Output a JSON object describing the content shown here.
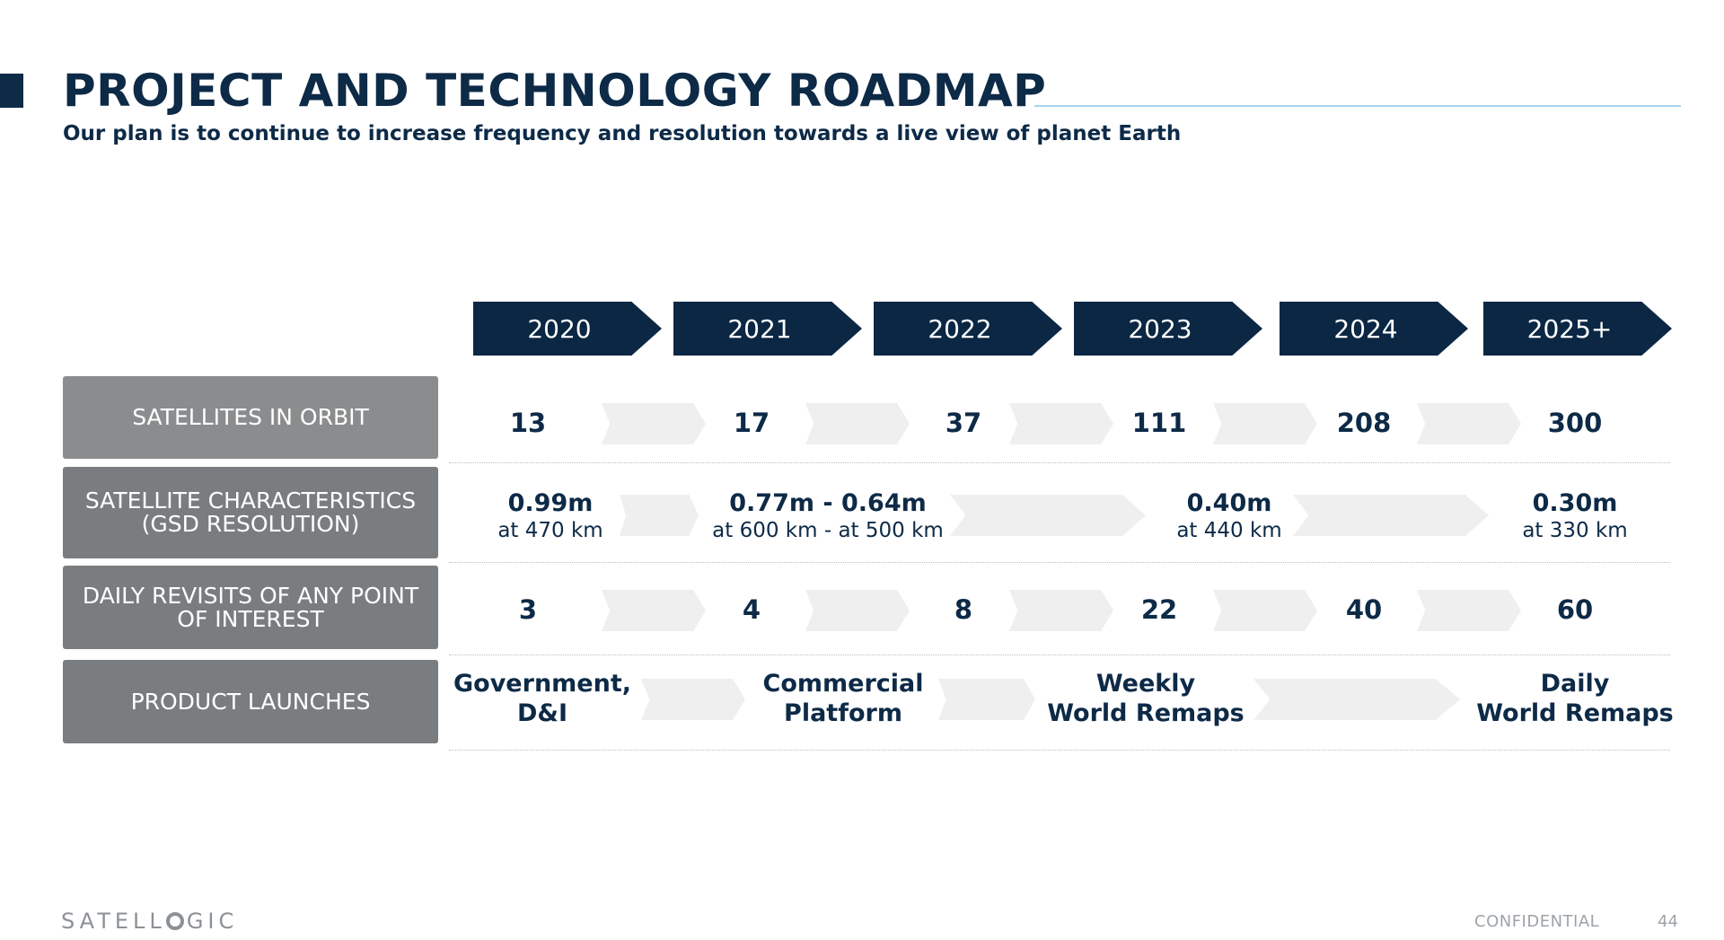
{
  "header": {
    "title": "PROJECT AND TECHNOLOGY ROADMAP",
    "subtitle": "Our plan is to continue to increase frequency and resolution towards a live view of planet Earth"
  },
  "years": [
    "2020",
    "2021",
    "2022",
    "2023",
    "2024",
    "2025+"
  ],
  "row_labels": {
    "satellites": "SATELLITES IN ORBIT",
    "characteristics": "SATELLITE CHARACTERISTICS (GSD RESOLUTION)",
    "revisits": "DAILY REVISITS OF ANY POINT OF INTEREST",
    "launches": "PRODUCT LAUNCHES"
  },
  "satellites": [
    "13",
    "17",
    "37",
    "111",
    "208",
    "300"
  ],
  "characteristics": [
    {
      "resolution": "0.99m",
      "altitude": "at 470 km"
    },
    {
      "resolution": "0.77m - 0.64m",
      "altitude": "at 600 km - at 500 km"
    },
    {
      "resolution": "0.40m",
      "altitude": "at 440 km"
    },
    {
      "resolution": "0.30m",
      "altitude": "at 330 km"
    }
  ],
  "revisits": [
    "3",
    "4",
    "8",
    "22",
    "40",
    "60"
  ],
  "launches": [
    {
      "line1": "Government,",
      "line2": "D&I"
    },
    {
      "line1": "Commercial",
      "line2": "Platform"
    },
    {
      "line1": "Weekly",
      "line2": "World Remaps"
    },
    {
      "line1": "Daily",
      "line2": "World Remaps"
    }
  ],
  "footer": {
    "logo": "SATELLOGIC",
    "logo_left": "SATELL",
    "logo_right": "GIC",
    "confidential": "CONFIDENTIAL",
    "page_number": "44"
  },
  "colors": {
    "navy": "#0b2744",
    "label_gray": "#7a7d7f",
    "chevron_gray": "#efefef",
    "title_rule": "#a9d3ef"
  }
}
